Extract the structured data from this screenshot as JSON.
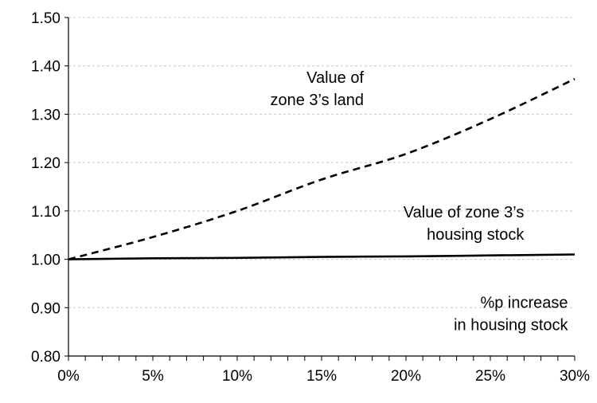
{
  "chart_data": {
    "type": "line",
    "title": "",
    "xlabel": "",
    "ylabel": "",
    "xlim": [
      0,
      30
    ],
    "ylim": [
      0.8,
      1.5
    ],
    "grid": "horizontal dashed",
    "legend": "none",
    "x_ticks": [
      "0%",
      "5%",
      "10%",
      "15%",
      "20%",
      "25%",
      "30%"
    ],
    "x_tick_values": [
      0,
      5,
      10,
      15,
      20,
      25,
      30
    ],
    "y_ticks": [
      "0.80",
      "0.90",
      "1.00",
      "1.10",
      "1.20",
      "1.30",
      "1.40",
      "1.50"
    ],
    "y_tick_values": [
      0.8,
      0.9,
      1.0,
      1.1,
      1.2,
      1.3,
      1.4,
      1.5
    ],
    "x": [
      0,
      5,
      10,
      15,
      20,
      25,
      30
    ],
    "series": [
      {
        "values": [
          1.0,
          1.046,
          1.1,
          1.165,
          1.218,
          1.29,
          1.373
        ],
        "style": "dashed",
        "color": "#000000"
      },
      {
        "values": [
          1.0,
          1.002,
          1.003,
          1.005,
          1.006,
          1.008,
          1.01
        ],
        "style": "solid",
        "color": "#000000"
      }
    ],
    "annotations": [
      {
        "lines": [
          "Value of",
          "zone 3’s land"
        ],
        "anchor_x": 17.5,
        "anchor_y": 1.365
      },
      {
        "lines": [
          "Value of zone 3’s",
          "housing stock"
        ],
        "anchor_x": 27.0,
        "anchor_y": 1.087
      },
      {
        "lines": [
          "%p increase",
          "in housing stock"
        ],
        "anchor_x": 29.6,
        "anchor_y": 0.9
      }
    ]
  }
}
